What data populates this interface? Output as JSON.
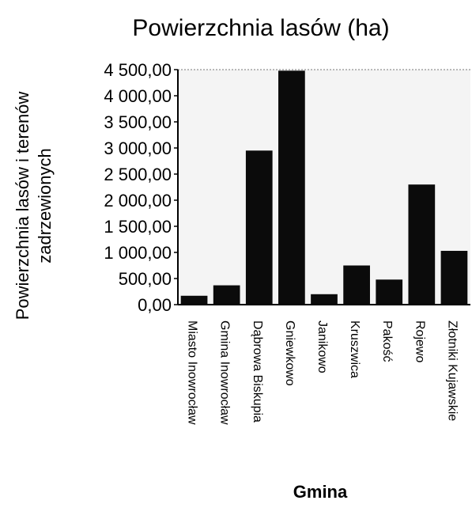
{
  "chart_data": {
    "type": "bar",
    "title": "Powierzchnia lasów (ha)",
    "xlabel": "Gmina",
    "ylabel_lines": [
      "Powierzchnia lasów i terenów",
      "zadrzewionych"
    ],
    "categories": [
      "Miasto Inowrocław",
      "Gmina Inowrocław",
      "Dąbrowa Biskupia",
      "Gniewkowo",
      "Janikowo",
      "Kruszwica",
      "Pakość",
      "Rojewo",
      "Złotniki Kujawskie"
    ],
    "values": [
      170,
      370,
      2950,
      4480,
      200,
      750,
      480,
      2300,
      1030
    ],
    "ylim": [
      0,
      4500
    ],
    "yticks": [
      0,
      500,
      1000,
      1500,
      2000,
      2500,
      3000,
      3500,
      4000,
      4500
    ],
    "ytick_labels": [
      "0,00",
      "500,00",
      "1 000,00",
      "1 500,00",
      "2 000,00",
      "2 500,00",
      "3 000,00",
      "3 500,00",
      "4 000,00",
      "4 500,00"
    ],
    "bar_color": "#0b0b0b",
    "plot_fill": "#f4f4f4",
    "grid": false,
    "legend": "none"
  }
}
